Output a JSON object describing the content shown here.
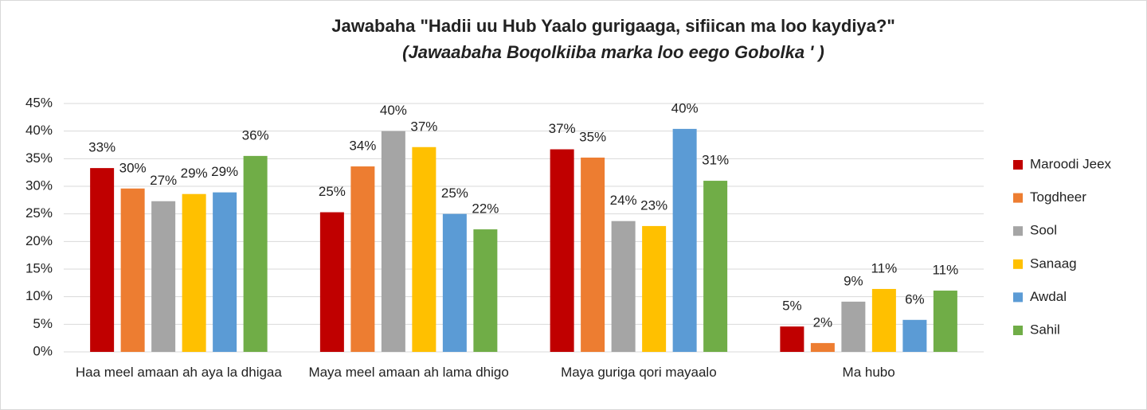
{
  "chart_data": {
    "type": "bar",
    "title": "Jawabaha \"Hadii uu Hub Yaalo gurigaaga, sifiican ma loo kaydiya?\"",
    "subtitle": "(Jawaabaha Boqolkiiba marka loo eego Gobolka ' )",
    "categories": [
      "Haa meel amaan ah aya la dhigaa",
      "Maya meel amaan ah lama dhigo",
      "Maya guriga qori mayaalo",
      "Ma hubo"
    ],
    "series": [
      {
        "name": "Maroodi Jeex",
        "color": "#c00000",
        "values": [
          33.3,
          25.3,
          36.7,
          4.6
        ],
        "value_labels": [
          "33%",
          "25%",
          "37%",
          "5%"
        ]
      },
      {
        "name": "Togdheer",
        "color": "#ed7d31",
        "values": [
          29.6,
          33.6,
          35.2,
          1.6
        ],
        "value_labels": [
          "30%",
          "34%",
          "35%",
          "2%"
        ]
      },
      {
        "name": "Sool",
        "color": "#a5a5a5",
        "values": [
          27.3,
          40.0,
          23.7,
          9.1
        ],
        "value_labels": [
          "27%",
          "40%",
          "24%",
          "9%"
        ]
      },
      {
        "name": "Sanaag",
        "color": "#ffc000",
        "values": [
          28.6,
          37.1,
          22.8,
          11.4
        ],
        "value_labels": [
          "29%",
          "37%",
          "23%",
          "11%"
        ]
      },
      {
        "name": "Awdal",
        "color": "#5b9bd5",
        "values": [
          28.9,
          25.0,
          40.4,
          5.8
        ],
        "value_labels": [
          "29%",
          "25%",
          "40%",
          "6%"
        ]
      },
      {
        "name": "Sahil",
        "color": "#70ad47",
        "values": [
          35.5,
          22.2,
          31.0,
          11.1
        ],
        "value_labels": [
          "36%",
          "22%",
          "31%",
          "11%"
        ]
      }
    ],
    "ylim": [
      0,
      45
    ],
    "yticks": [
      {
        "value": 0,
        "label": "0%"
      },
      {
        "value": 5,
        "label": "5%"
      },
      {
        "value": 10,
        "label": "10%"
      },
      {
        "value": 15,
        "label": "15%"
      },
      {
        "value": 20,
        "label": "20%"
      },
      {
        "value": 25,
        "label": "25%"
      },
      {
        "value": 30,
        "label": "30%"
      },
      {
        "value": 35,
        "label": "35%"
      },
      {
        "value": 40,
        "label": "40%"
      },
      {
        "value": 45,
        "label": "45%"
      }
    ],
    "grid": true,
    "legend": "right"
  }
}
